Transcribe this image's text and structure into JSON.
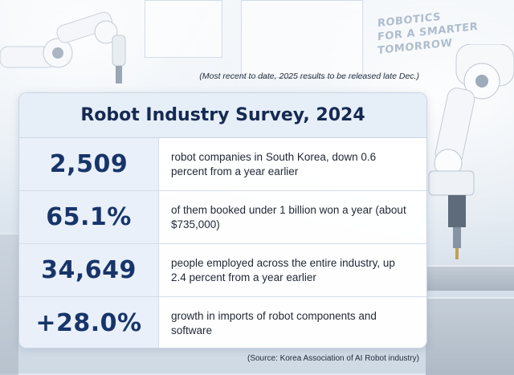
{
  "background": {
    "sign_lines": [
      "ROBOTICS",
      "FOR A SMARTER",
      "TOMORROW"
    ]
  },
  "note": "(Most recent to date, 2025 results to be released late Dec.)",
  "title": "Robot Industry Survey, 2024",
  "stats": [
    {
      "value": "2,509",
      "description": "robot companies in South Korea, down 0.6 percent from a year earlier"
    },
    {
      "value": "65.1%",
      "description": "of them booked under 1 billion won a year (about $735,000)"
    },
    {
      "value": "34,649",
      "description": "people employed across the entire industry, up 2.4 percent from a year earlier"
    },
    {
      "value": "+28.0%",
      "description": "growth in imports of robot components and software"
    }
  ],
  "source": "(Source: Korea Association of AI Robot industry)",
  "colors": {
    "title_text": "#152a52",
    "stat_value_text": "#17356a",
    "card_header_bg": "#e6eef8"
  }
}
